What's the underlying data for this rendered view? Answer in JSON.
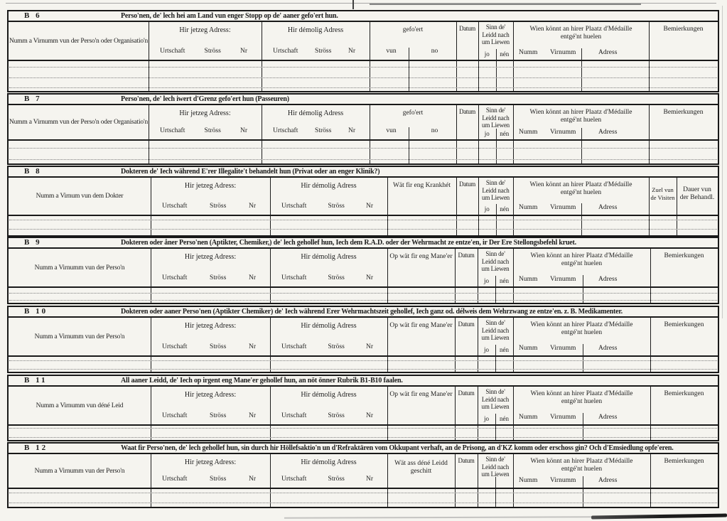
{
  "sections": [
    {
      "id": "B 6",
      "title": "Perso'nen, de' lech hei am Land vun enger Stopp op de' aaner gefo'ert hun.",
      "name_col": "Numm a Virnumm vun der Perso'n oder Organisatio'n",
      "jetzeg_label": "Hir jetzeg Adress:",
      "jetzeg_subs": [
        "Urtschaft",
        "Ströss",
        "Nr"
      ],
      "demolig_label": "Hir démolig Adress",
      "demolig_subs": [
        "Urtschaft",
        "Ströss",
        "Nr"
      ],
      "mid_lines": [
        "gefo'ert"
      ],
      "mid_subs": [
        "vun",
        "no"
      ],
      "datum_label": "Datum",
      "sinn_lines": [
        "Sinn de'",
        "Leidd nach",
        "um Liewen"
      ],
      "sinn_subs": [
        "jo",
        "nén"
      ],
      "wien_lines": [
        "Wien könnt an hirer Plaatz d'Médaille",
        "entgé'nt huelen"
      ],
      "wien_subs": [
        "Numm",
        "Virnumm",
        "Adress"
      ],
      "end_cols": [
        {
          "lines": [
            "Bemierkungen"
          ]
        }
      ],
      "entry_lines": 3
    },
    {
      "id": "B 7",
      "title": "Perso'nen, de' lech iwert d'Grenz gefo'ert hun (Passeuren)",
      "name_col": "Numm a Virnumm vun der Perso'n oder Organisatio'n",
      "jetzeg_label": "Hir jetzeg Adress:",
      "jetzeg_subs": [
        "Urtschaft",
        "Ströss",
        "Nr"
      ],
      "demolig_label": "Hir démolig Adress",
      "demolig_subs": [
        "Urtschaft",
        "Ströss",
        "Nr"
      ],
      "mid_lines": [
        "gefo'ert"
      ],
      "mid_subs": [
        "vun",
        "no"
      ],
      "datum_label": "Datum",
      "sinn_lines": [
        "Sinn de'",
        "Leidd nach",
        "um Liewen"
      ],
      "sinn_subs": [
        "jo",
        "nén"
      ],
      "wien_lines": [
        "Wien könnt an hirer Plaatz d'Médaille",
        "entgé'nt huelen"
      ],
      "wien_subs": [
        "Numm",
        "Virnumm",
        "Adress"
      ],
      "end_cols": [
        {
          "lines": [
            "Bemierkungen"
          ]
        }
      ],
      "entry_lines": 2
    },
    {
      "id": "B 8",
      "title": "Dokteren de' Iech während E'rer Illegalite't behandelt hun (Privat oder an enger Klinik?)",
      "name_col": "Numm a Virnum vun dem Dokter",
      "jetzeg_label": "Hir jetzeg Adress:",
      "jetzeg_subs": [
        "Urtschaft",
        "Ströss",
        "Nr"
      ],
      "demolig_label": "Hir démolig Adress",
      "demolig_subs": [
        "Urtschaft",
        "Ströss",
        "Nr"
      ],
      "mid_lines": [
        "Wät fir eng Krankhét"
      ],
      "mid_subs": [],
      "datum_label": "Datum",
      "sinn_lines": [
        "Sinn de'",
        "Leidd nach",
        "um Liewen"
      ],
      "sinn_subs": [
        "jo",
        "nén"
      ],
      "wien_lines": [
        "Wien könnt an hirer Plaatz d'Médaille",
        "entgé'nt huelen"
      ],
      "wien_subs": [
        "Numm",
        "Virnumm",
        "Adress"
      ],
      "end_cols": [
        {
          "lines": [
            "Zuel vun",
            "de Visiten"
          ]
        },
        {
          "lines": [
            "Dauer vun",
            "der Behandl."
          ]
        }
      ],
      "entry_lines": 2
    },
    {
      "id": "B 9",
      "title": "Dokteren oder åner Perso'nen (Aptikter, Chemiker,) de' lech gehollef hun, Iech dem R.A.D. oder der Wehrmacht ze entze'en, ir Der Ere Stellongsbefehl kruet.",
      "name_col": "Numm a Virnumm vun der Perso'n",
      "jetzeg_label": "Hir jetzeg Adress:",
      "jetzeg_subs": [
        "Urtschaft",
        "Ströss",
        "Nr"
      ],
      "demolig_label": "Hir démolig Adress",
      "demolig_subs": [
        "Urtschaft",
        "Ströss",
        "Nr"
      ],
      "mid_lines": [
        "Op wät fir eng Mane'er"
      ],
      "mid_subs": [],
      "datum_label": "Datum",
      "sinn_lines": [
        "Sinn de'",
        "Leidd nach",
        "um Liewen"
      ],
      "sinn_subs": [
        "jo",
        "nén"
      ],
      "wien_lines": [
        "Wien könnt an hirer Plaatz d'Médaille",
        "entgé'nt huelen"
      ],
      "wien_subs": [
        "Numm",
        "Virnumm",
        "Adress"
      ],
      "end_cols": [
        {
          "lines": [
            "Bemierkungen"
          ]
        }
      ],
      "entry_lines": 2
    },
    {
      "id": "B 10",
      "title": "Dokteren oder aaner Perso'nen (Aptikter Chemiker) de' Iech während Erer Wehrmachtszeit gehollef, Iech ganz od. délweis dem Wehrzwang ze entze'en. z. B. Medikamenter.",
      "name_col": "Numm a Virnumm vun der Perso'n",
      "jetzeg_label": "Hir jetzeg Adress:",
      "jetzeg_subs": [
        "Urtschaft",
        "Ströss",
        "Nr"
      ],
      "demolig_label": "Hir démolig Adress",
      "demolig_subs": [
        "Urtschaft",
        "Ströss",
        "Nr"
      ],
      "mid_lines": [
        "Op wät fir eng Mane'er"
      ],
      "mid_subs": [],
      "datum_label": "Datum",
      "sinn_lines": [
        "Sinn de'",
        "Leidd nach",
        "um Liewen"
      ],
      "sinn_subs": [
        "jo",
        "nén"
      ],
      "wien_lines": [
        "Wien könnt an hirer Plaatz d'Médaille",
        "entgé'nt huelen"
      ],
      "wien_subs": [
        "Numm",
        "Virnumm",
        "Adress"
      ],
      "end_cols": [
        {
          "lines": [
            "Bemierkungen"
          ]
        }
      ],
      "entry_lines": 2
    },
    {
      "id": "B 11",
      "title": "All aaner Leidd, de' Iech op irgent eng Mane'er gehollef hun, an nöt önner Rubrik B1-B10 faalen.",
      "name_col": "Numm a Virnumm vun déné Leid",
      "jetzeg_label": "Hir jetzeg Adress:",
      "jetzeg_subs": [
        "Urtschaft",
        "Ströss",
        "Nr"
      ],
      "demolig_label": "Hir démolig Adress",
      "demolig_subs": [
        "Urtschaft",
        "Ströss",
        "Nr"
      ],
      "mid_lines": [
        "Op wät fir eng Mane'er"
      ],
      "mid_subs": [],
      "datum_label": "Datum",
      "sinn_lines": [
        "Sinn de'",
        "Leidd nach",
        "um Liewen"
      ],
      "sinn_subs": [
        "jo",
        "nén"
      ],
      "wien_lines": [
        "Wien könnt an hirer Plaatz d'Médaille",
        "entgé'nt huelen"
      ],
      "wien_subs": [
        "Numm",
        "Virnumm",
        "Adress"
      ],
      "end_cols": [
        {
          "lines": [
            "Bemierkungen"
          ]
        }
      ],
      "entry_lines": 2
    },
    {
      "id": "B 12",
      "title": "Waat fir Perso'nen, de' lech gehollef hun, sin durch hir Höllefsaktio'n un d'Refraktären vom Okkupant verhaft, an de Prisong, an d'KZ komm oder erschoss gin? Och d'Emsiedlung opfe'eren.",
      "name_col": "Numm a Virnumm vun der Perso'n",
      "jetzeg_label": "Hir jetzeg Adress:",
      "jetzeg_subs": [
        "Urtschaft",
        "Ströss",
        "Nr"
      ],
      "demolig_label": "Hir démolig Adress",
      "demolig_subs": [
        "Urtschaft",
        "Ströss",
        "Nr"
      ],
      "mid_lines": [
        "Wät ass déné Leidd",
        "geschitt"
      ],
      "mid_subs": [],
      "datum_label": "Datum",
      "sinn_lines": [
        "Sinn de'",
        "Leidd nach",
        "um Liewen"
      ],
      "sinn_subs": [],
      "wien_lines": [
        "Wien könnt an hirer Plaatz d'Médaille",
        "entgé'nt huelen"
      ],
      "wien_subs": [
        "Numm",
        "Virnumm",
        "Adress"
      ],
      "end_cols": [
        {
          "lines": [
            "Bemierkungen"
          ]
        }
      ],
      "entry_lines": 2
    }
  ],
  "colors": {
    "ink": "#1c1c1c",
    "paper": "#f5f4ef",
    "dotted_rule": "#7e7e7e"
  }
}
